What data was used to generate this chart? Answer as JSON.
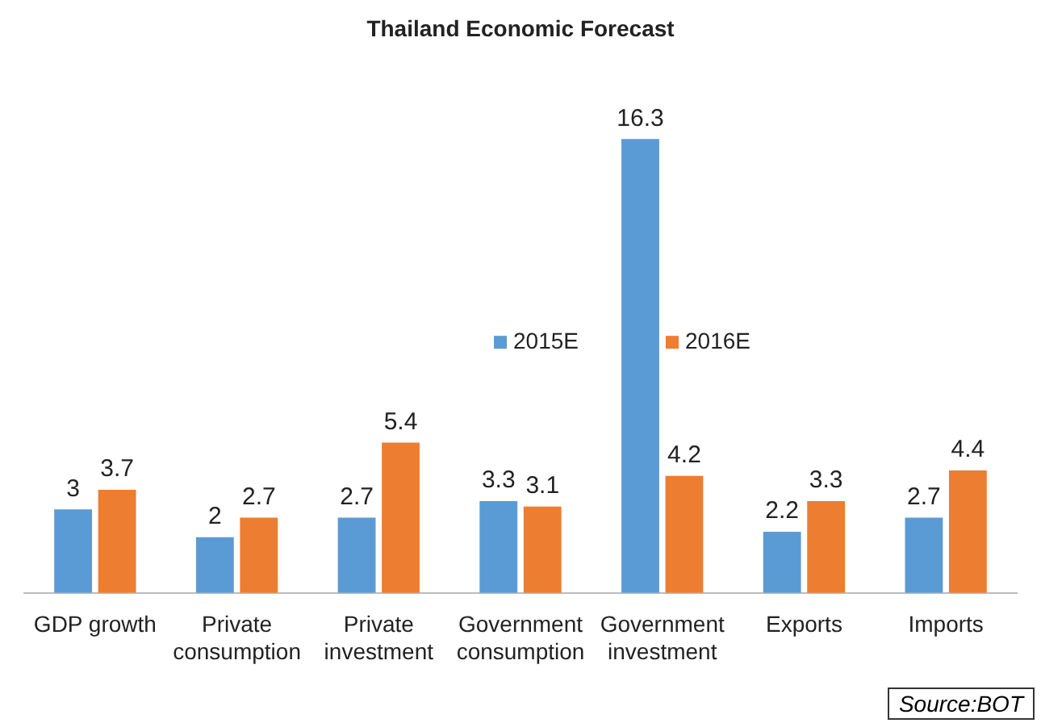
{
  "chart_data": {
    "type": "bar",
    "title": "Thailand Economic Forecast",
    "categories": [
      "GDP growth",
      "Private consumption",
      "Private investment",
      "Government consumption",
      "Government investment",
      "Exports",
      "Imports"
    ],
    "series": [
      {
        "name": "2015E",
        "color": "#5b9bd5",
        "values": [
          3,
          2,
          2.7,
          3.3,
          16.3,
          2.2,
          2.7
        ]
      },
      {
        "name": "2016E",
        "color": "#ed7d31",
        "values": [
          3.7,
          2.7,
          5.4,
          3.1,
          4.2,
          3.3,
          4.4
        ]
      }
    ],
    "data_labels": true,
    "legend": "center",
    "tick_labels": "x",
    "grid": false,
    "annotations": [
      "Source:BOT"
    ]
  }
}
